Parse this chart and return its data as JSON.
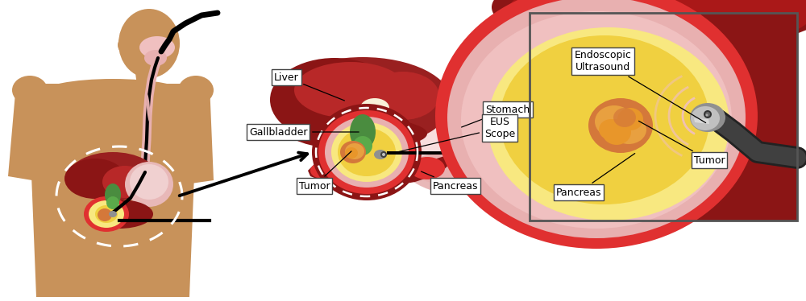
{
  "bg_color": "#ffffff",
  "fig_width": 10.0,
  "fig_height": 3.74,
  "labels": {
    "liver": "Liver",
    "gallbladder": "Gallbladder",
    "stomach": "Stomach",
    "eus_scope": "EUS\nScope",
    "tumor_mid": "Tumor",
    "pancreas_mid": "Pancreas",
    "endoscopic_ultrasound": "Endoscopic\nUltrasound",
    "tumor_right": "Tumor",
    "pancreas_right": "Pancreas"
  },
  "colors": {
    "skin": "#c8925a",
    "skin_dark": "#b07840",
    "dark_red": "#8b1515",
    "red": "#c0302b",
    "bright_red": "#e03030",
    "liver_red": "#992020",
    "liver_light": "#b82828",
    "pink": "#e8a0a0",
    "light_pink": "#f0c0c0",
    "salmon": "#e8b0b0",
    "stomach_pink": "#e8b8b8",
    "stomach_light": "#f0d0d0",
    "green": "#4a8c3f",
    "green_light": "#5aaa4a",
    "yellow": "#f0d040",
    "yellow_light": "#f8e880",
    "orange": "#e8962a",
    "dark_orange": "#d4783a",
    "orange_tumor": "#e8a040",
    "black": "#111111",
    "white": "#ffffff",
    "scope_silver": "#c0c0c0",
    "scope_gray": "#909090",
    "scope_dark": "#404040",
    "scope_black": "#222222",
    "cream": "#f8f0d8"
  }
}
